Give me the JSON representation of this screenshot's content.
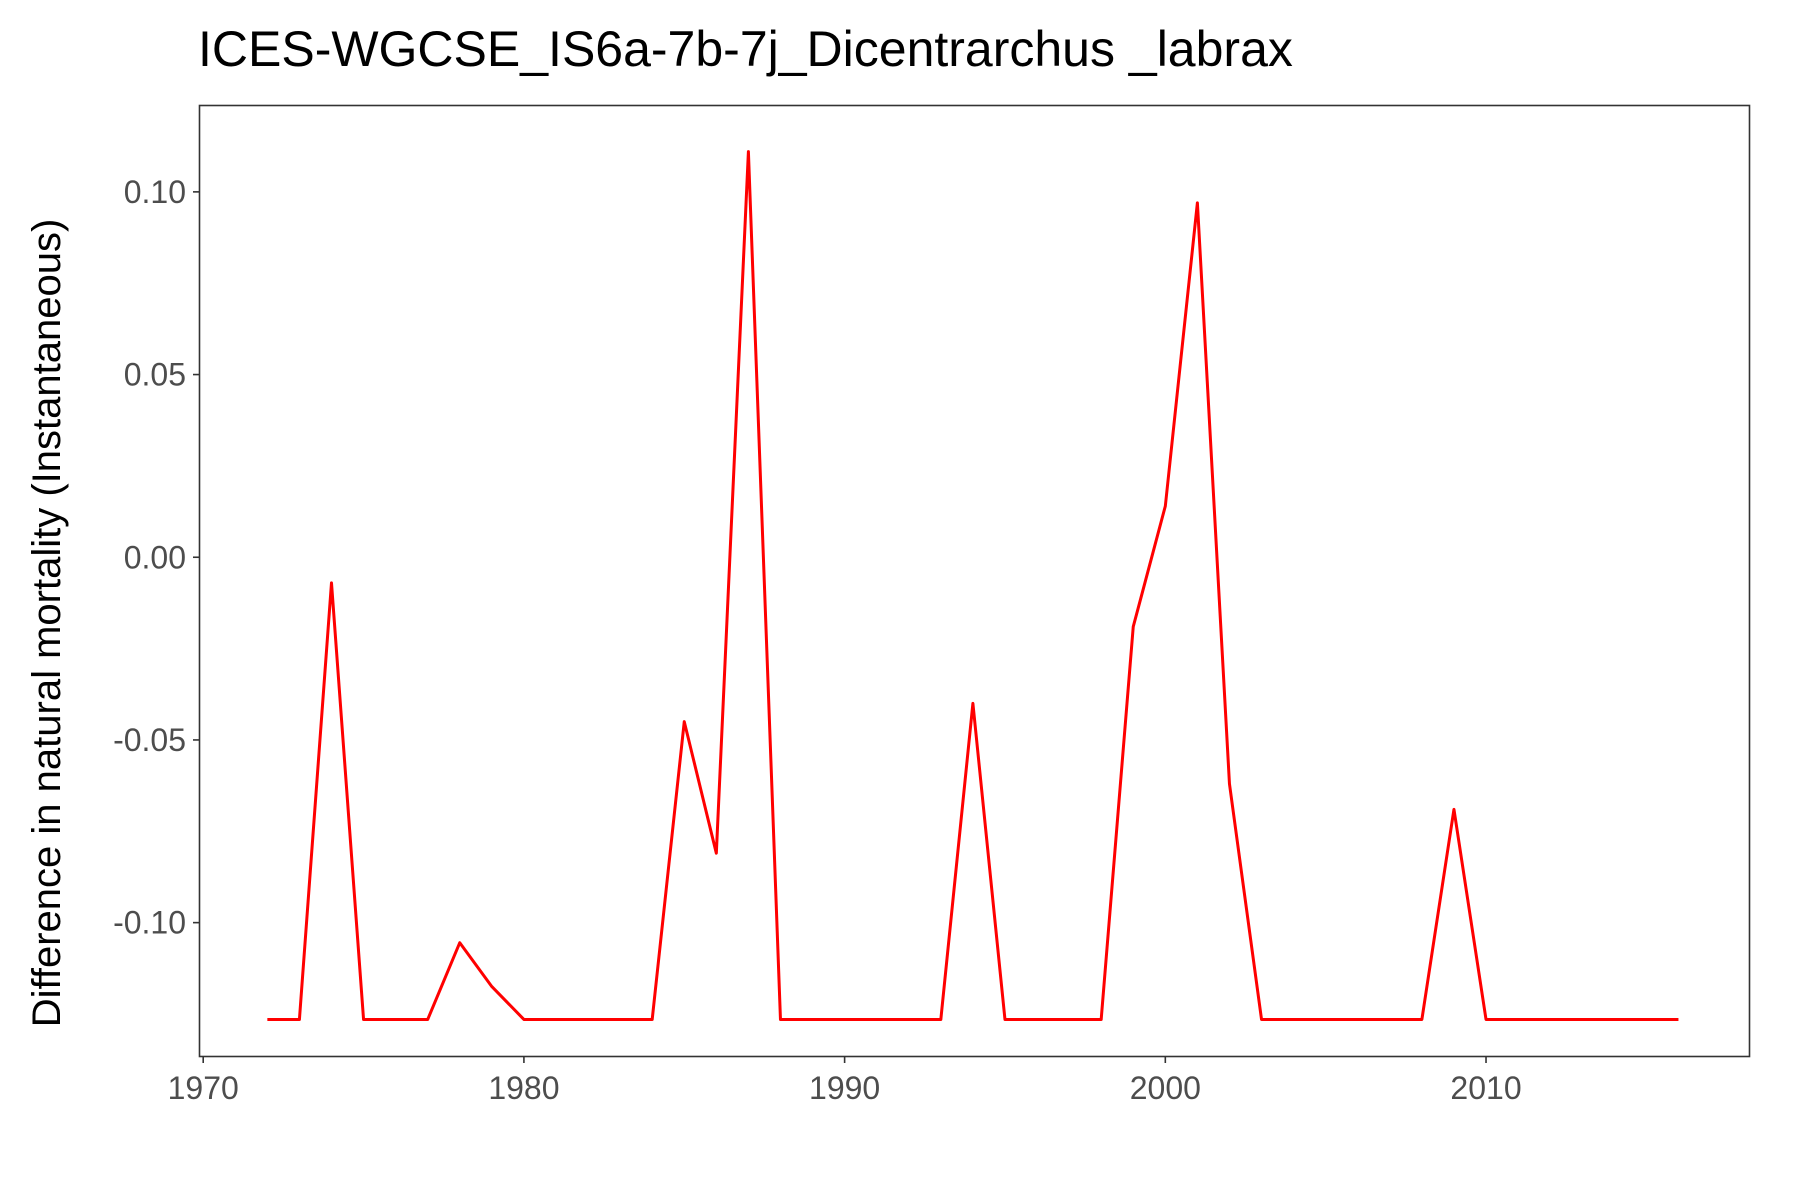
{
  "chart_data": {
    "type": "line",
    "title": "ICES-WGCSE_IS6a-7b-7j_Dicentrarchus _labrax",
    "xlabel": "",
    "ylabel": "Difference in natural mortality (Instantaneous)",
    "xlim": [
      1969.9,
      2018.2
    ],
    "ylim": [
      -0.1365,
      0.1235
    ],
    "x_ticks": [
      1970,
      1980,
      1990,
      2000,
      2010
    ],
    "x_tick_labels": [
      "1970",
      "1980",
      "1990",
      "2000",
      "2010"
    ],
    "y_ticks": [
      -0.1,
      -0.05,
      0.0,
      0.05,
      0.1
    ],
    "y_tick_labels": [
      "-0.10",
      "-0.05",
      "0.00",
      "0.05",
      "0.10"
    ],
    "grid": false,
    "legend": "none",
    "series": [
      {
        "color": "#ff0000",
        "x": [
          1972,
          1973,
          1974,
          1975,
          1976,
          1977,
          1978,
          1979,
          1980,
          1981,
          1982,
          1983,
          1984,
          1985,
          1986,
          1987,
          1988,
          1989,
          1990,
          1991,
          1992,
          1993,
          1994,
          1995,
          1996,
          1997,
          1998,
          1999,
          2000,
          2001,
          2002,
          2003,
          2004,
          2005,
          2006,
          2007,
          2008,
          2009,
          2010,
          2011,
          2012,
          2013,
          2014,
          2015,
          2016
        ],
        "values": [
          -0.1265,
          -0.1265,
          -0.007,
          -0.1265,
          -0.1265,
          -0.1265,
          -0.1055,
          -0.1175,
          -0.1265,
          -0.1265,
          -0.1265,
          -0.1265,
          -0.1265,
          -0.045,
          -0.081,
          0.111,
          -0.1265,
          -0.1265,
          -0.1265,
          -0.1265,
          -0.1265,
          -0.1265,
          -0.04,
          -0.1265,
          -0.1265,
          -0.1265,
          -0.1265,
          -0.019,
          0.014,
          0.097,
          -0.062,
          -0.1265,
          -0.1265,
          -0.1265,
          -0.1265,
          -0.1265,
          -0.1265,
          -0.069,
          -0.1265,
          -0.1265,
          -0.1265,
          -0.1265,
          -0.1265,
          -0.1265,
          -0.1265
        ]
      }
    ]
  },
  "colors": {
    "line": "#ff0000",
    "panel_border": "#333333",
    "tick_text": "#4d4d4d",
    "background": "#ffffff"
  }
}
